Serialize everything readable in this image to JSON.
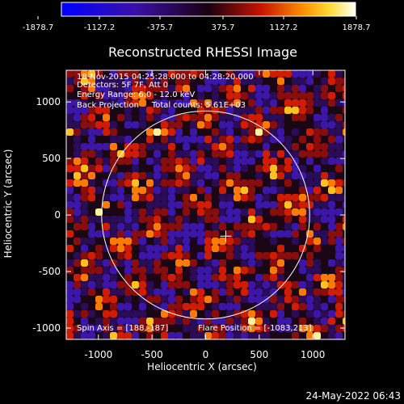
{
  "colorbar": {
    "ticks": [
      "-1878.7",
      "-1127.2",
      "-375.7",
      "375.7",
      "1127.2",
      "1878.7"
    ],
    "min": -1878.7,
    "max": 1878.7,
    "colormap": "blue-purple-red-yellow-white"
  },
  "chart_data": {
    "type": "heatmap",
    "title": "Reconstructed RHESSI Image",
    "xlabel": "Heliocentric X (arcsec)",
    "ylabel": "Heliocentric Y (arcsec)",
    "xlim": [
      -1300,
      1300
    ],
    "ylim": [
      -1100,
      1280
    ],
    "xticks": [
      "-1000",
      "-500",
      "0",
      "500",
      "1000"
    ],
    "yticks": [
      "-1000",
      "-500",
      "0",
      "500",
      "1000"
    ],
    "xtick_values": [
      -1000,
      -500,
      0,
      500,
      1000
    ],
    "ytick_values": [
      -1000,
      -500,
      0,
      500,
      1000
    ],
    "annotations": {
      "line1": "18-Nov-2015 04:25:28.000 to 04:28:20.000",
      "line2": "Detectors: 5F 7F, Att 0",
      "line3": "Energy Range: 6.0 - 12.0 keV",
      "line4": "Back Projection     Total counts: 5.61E+03",
      "spin_axis": "Spin Axis = [188,-187]",
      "flare_position": "Flare Position = [-1083,213]"
    },
    "solar_disk": {
      "center": [
        0,
        0
      ],
      "radius_arcsec": 970
    },
    "marker": {
      "symbol": "+",
      "x": 188,
      "y": -187
    }
  },
  "footer": {
    "date": "24-May-2022 06:43"
  }
}
